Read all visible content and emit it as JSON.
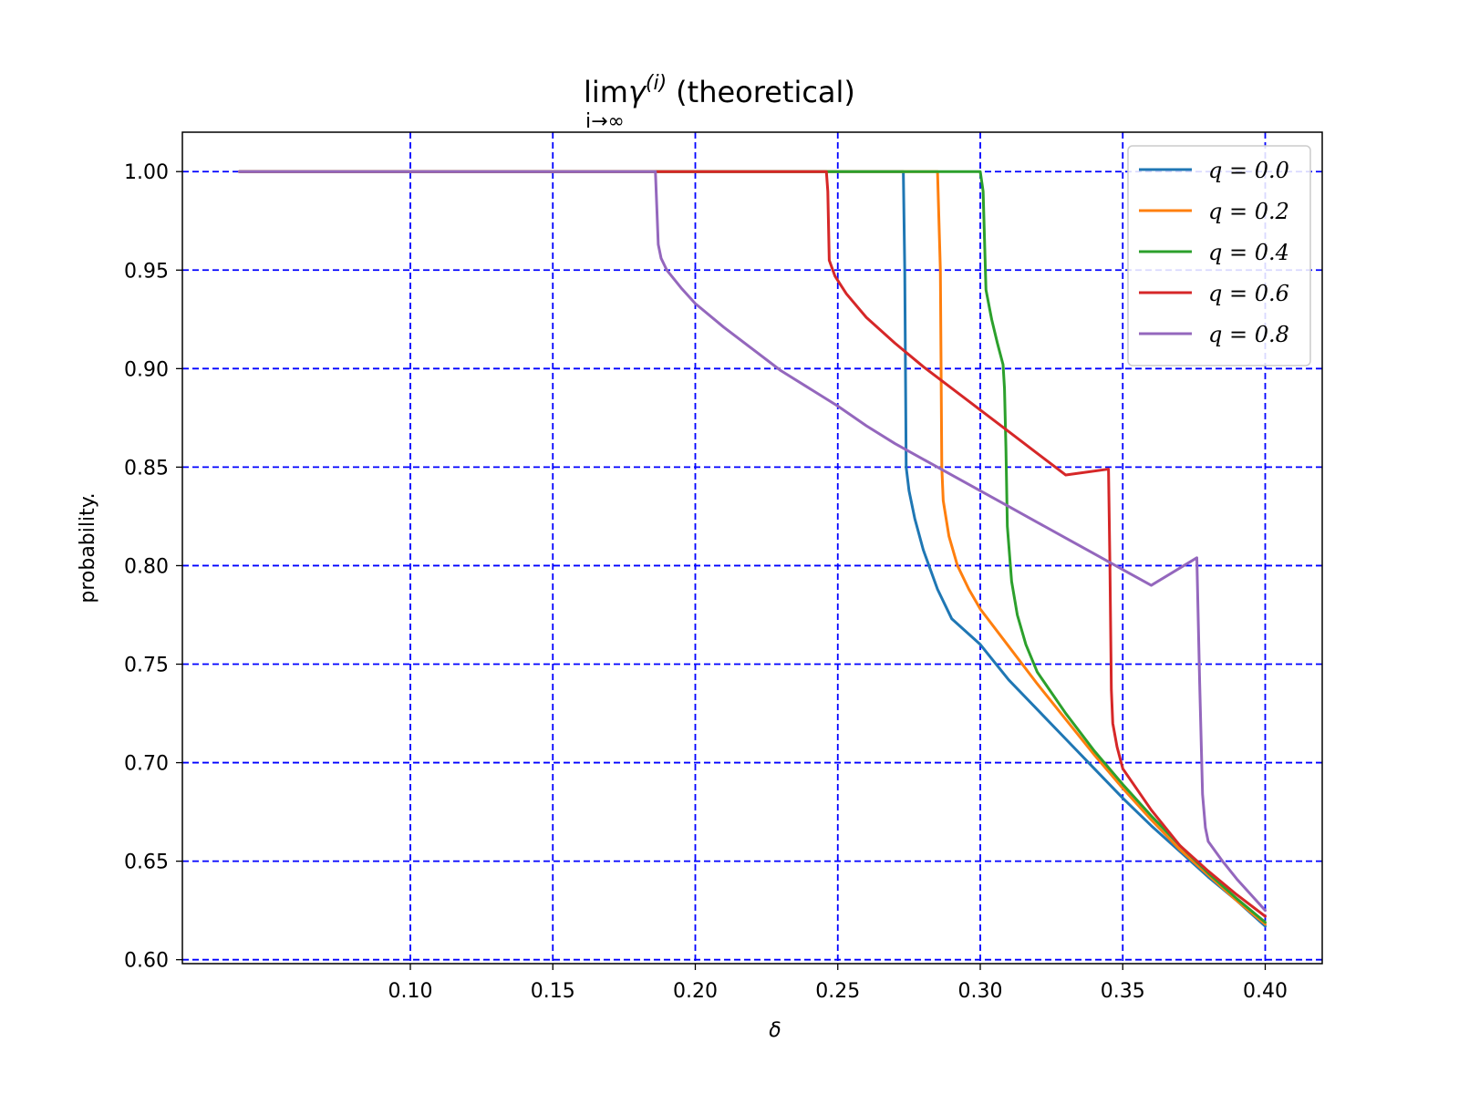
{
  "chart_data": {
    "type": "line",
    "title": "limγ(i) (theoretical)",
    "title_parts": {
      "main": "lim",
      "gamma": "γ",
      "superscript": "(i)",
      "suffix": "(theoretical)",
      "subscript": "i→∞"
    },
    "xlabel": "δ",
    "ylabel": "probability.",
    "xlim": [
      0.02,
      0.42
    ],
    "ylim": [
      0.598,
      1.02
    ],
    "xticks": [
      0.1,
      0.15,
      0.2,
      0.25,
      0.3,
      0.35,
      0.4
    ],
    "xtick_labels": [
      "0.10",
      "0.15",
      "0.20",
      "0.25",
      "0.30",
      "0.35",
      "0.40"
    ],
    "yticks": [
      0.6,
      0.65,
      0.7,
      0.75,
      0.8,
      0.85,
      0.9,
      0.95,
      1.0
    ],
    "ytick_labels": [
      "0.60",
      "0.65",
      "0.70",
      "0.75",
      "0.80",
      "0.85",
      "0.90",
      "0.95",
      "1.00"
    ],
    "grid": true,
    "grid_color": "#0000ff",
    "legend_position": "top-right",
    "series": [
      {
        "name": "q = 0.0",
        "color": "#1f77b4",
        "x": [
          0.04,
          0.273,
          0.2735,
          0.274,
          0.275,
          0.277,
          0.28,
          0.285,
          0.29,
          0.3,
          0.31,
          0.32,
          0.33,
          0.34,
          0.35,
          0.36,
          0.37,
          0.38,
          0.39,
          0.4
        ],
        "y": [
          1.0,
          1.0,
          0.95,
          0.85,
          0.838,
          0.824,
          0.808,
          0.788,
          0.773,
          0.76,
          0.742,
          0.727,
          0.712,
          0.697,
          0.682,
          0.668,
          0.655,
          0.642,
          0.63,
          0.617
        ]
      },
      {
        "name": "q = 0.2",
        "color": "#ff7f0e",
        "x": [
          0.04,
          0.285,
          0.286,
          0.2865,
          0.287,
          0.289,
          0.292,
          0.296,
          0.3,
          0.31,
          0.32,
          0.33,
          0.34,
          0.35,
          0.36,
          0.37,
          0.38,
          0.39,
          0.4
        ],
        "y": [
          1.0,
          1.0,
          0.95,
          0.85,
          0.833,
          0.815,
          0.8,
          0.788,
          0.778,
          0.759,
          0.74,
          0.722,
          0.704,
          0.687,
          0.671,
          0.656,
          0.643,
          0.63,
          0.618
        ]
      },
      {
        "name": "q = 0.4",
        "color": "#2ca02c",
        "x": [
          0.04,
          0.3,
          0.301,
          0.302,
          0.304,
          0.306,
          0.308,
          0.3085,
          0.309,
          0.3095,
          0.311,
          0.313,
          0.316,
          0.32,
          0.33,
          0.34,
          0.35,
          0.36,
          0.37,
          0.38,
          0.39,
          0.4
        ],
        "y": [
          1.0,
          1.0,
          0.99,
          0.94,
          0.925,
          0.913,
          0.902,
          0.89,
          0.86,
          0.82,
          0.792,
          0.775,
          0.76,
          0.746,
          0.725,
          0.706,
          0.689,
          0.673,
          0.658,
          0.644,
          0.631,
          0.619
        ]
      },
      {
        "name": "q = 0.6",
        "color": "#d62728",
        "x": [
          0.04,
          0.246,
          0.2465,
          0.247,
          0.249,
          0.253,
          0.26,
          0.27,
          0.28,
          0.29,
          0.3,
          0.31,
          0.32,
          0.33,
          0.345,
          0.3455,
          0.346,
          0.3465,
          0.348,
          0.35,
          0.36,
          0.37,
          0.38,
          0.39,
          0.4
        ],
        "y": [
          1.0,
          1.0,
          0.99,
          0.955,
          0.947,
          0.938,
          0.926,
          0.913,
          0.901,
          0.89,
          0.879,
          0.868,
          0.857,
          0.846,
          0.849,
          0.8,
          0.737,
          0.72,
          0.708,
          0.697,
          0.676,
          0.658,
          0.645,
          0.633,
          0.622
        ]
      },
      {
        "name": "q = 0.8",
        "color": "#9467bd",
        "x": [
          0.04,
          0.186,
          0.187,
          0.188,
          0.19,
          0.195,
          0.2,
          0.21,
          0.22,
          0.23,
          0.24,
          0.25,
          0.26,
          0.27,
          0.28,
          0.29,
          0.3,
          0.31,
          0.32,
          0.33,
          0.34,
          0.35,
          0.36,
          0.376,
          0.377,
          0.378,
          0.379,
          0.38,
          0.385,
          0.39,
          0.4
        ],
        "y": [
          1.0,
          1.0,
          0.963,
          0.956,
          0.95,
          0.941,
          0.933,
          0.921,
          0.91,
          0.899,
          0.89,
          0.881,
          0.871,
          0.862,
          0.854,
          0.846,
          0.838,
          0.83,
          0.822,
          0.814,
          0.806,
          0.798,
          0.79,
          0.804,
          0.74,
          0.684,
          0.667,
          0.66,
          0.65,
          0.641,
          0.625
        ]
      }
    ]
  }
}
